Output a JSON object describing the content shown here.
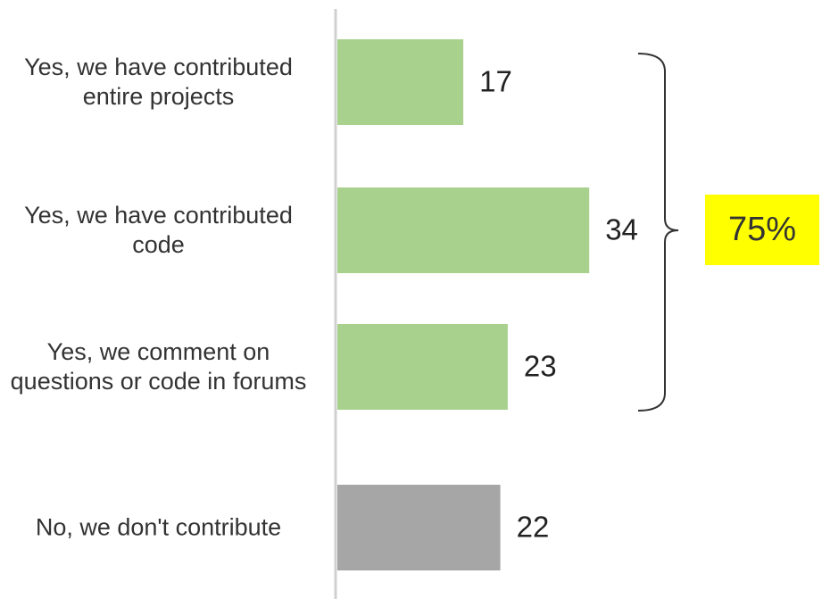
{
  "chart_data": {
    "type": "bar",
    "orientation": "horizontal",
    "categories": [
      "Yes, we have contributed entire projects",
      "Yes, we have contributed code",
      "Yes, we comment on questions or code in forums",
      "No, we don't contribute"
    ],
    "values": [
      17,
      34,
      23,
      22
    ],
    "colors": [
      "#a9d18e",
      "#a9d18e",
      "#a9d18e",
      "#a6a6a6"
    ],
    "annotations": [
      "75%"
    ]
  }
}
